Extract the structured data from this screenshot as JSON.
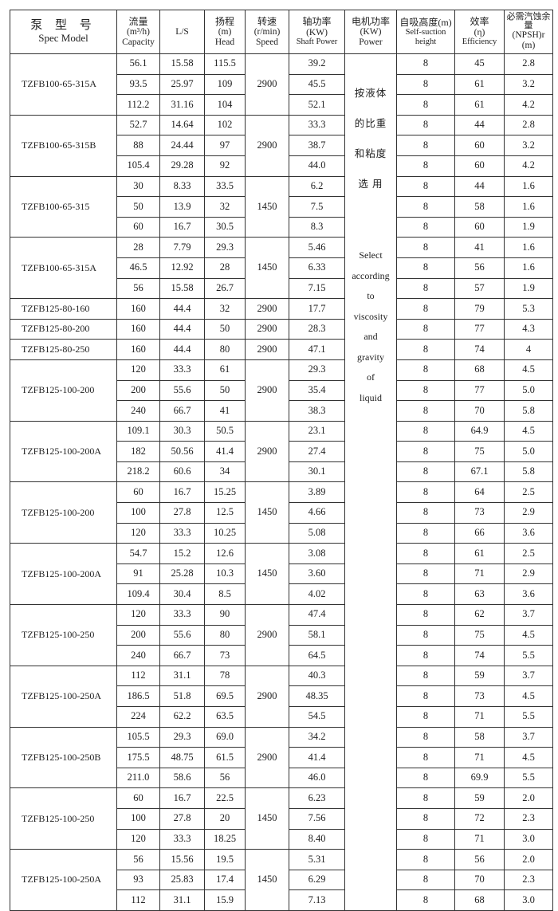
{
  "header": {
    "model": {
      "cn": "泵 型 号",
      "en": "Spec Model"
    },
    "capacity": {
      "cn": "流量",
      "unit": "(m³/h)",
      "en": "Capacity"
    },
    "ls": {
      "en": "L/S"
    },
    "head": {
      "cn": "扬程",
      "unit": "(m)",
      "en": "Head"
    },
    "speed": {
      "cn": "转速",
      "unit": "(r/min)",
      "en": "Speed"
    },
    "shaft": {
      "cn": "轴功率",
      "unit": "(KW)",
      "en": "Shaft Power"
    },
    "power": {
      "cn": "电机功率",
      "unit": "(KW)",
      "en": "Power"
    },
    "suction": {
      "cn": "自吸高度(m)",
      "en": "Self-suction height"
    },
    "efficiency": {
      "cn": "效率",
      "unit": "(η)",
      "en": "Efficiency"
    },
    "npsh": {
      "cn": "必需汽蚀余量",
      "unit": "(NPSH)r",
      "en": "(m)"
    }
  },
  "power_note": {
    "cn": [
      "按液体",
      "的比重",
      "和粘度",
      "选  用"
    ],
    "en": [
      "Select",
      "according",
      "to",
      "viscosity",
      "and",
      "gravity",
      "of",
      "liquid"
    ]
  },
  "groups": [
    {
      "model": "TZFB100-65-315A",
      "speed": "2900",
      "rows": [
        [
          "56.1",
          "15.58",
          "115.5",
          "39.2",
          "8",
          "45",
          "2.8"
        ],
        [
          "93.5",
          "25.97",
          "109",
          "45.5",
          "8",
          "61",
          "3.2"
        ],
        [
          "112.2",
          "31.16",
          "104",
          "52.1",
          "8",
          "61",
          "4.2"
        ]
      ]
    },
    {
      "model": "TZFB100-65-315B",
      "speed": "2900",
      "rows": [
        [
          "52.7",
          "14.64",
          "102",
          "33.3",
          "8",
          "44",
          "2.8"
        ],
        [
          "88",
          "24.44",
          "97",
          "38.7",
          "8",
          "60",
          "3.2"
        ],
        [
          "105.4",
          "29.28",
          "92",
          "44.0",
          "8",
          "60",
          "4.2"
        ]
      ]
    },
    {
      "model": "TZFB100-65-315",
      "speed": "1450",
      "rows": [
        [
          "30",
          "8.33",
          "33.5",
          "6.2",
          "8",
          "44",
          "1.6"
        ],
        [
          "50",
          "13.9",
          "32",
          "7.5",
          "8",
          "58",
          "1.6"
        ],
        [
          "60",
          "16.7",
          "30.5",
          "8.3",
          "8",
          "60",
          "1.9"
        ]
      ]
    },
    {
      "model": "TZFB100-65-315A",
      "speed": "1450",
      "rows": [
        [
          "28",
          "7.79",
          "29.3",
          "5.46",
          "8",
          "41",
          "1.6"
        ],
        [
          "46.5",
          "12.92",
          "28",
          "6.33",
          "8",
          "56",
          "1.6"
        ],
        [
          "56",
          "15.58",
          "26.7",
          "7.15",
          "8",
          "57",
          "1.9"
        ]
      ]
    },
    {
      "model": "TZFB125-80-160",
      "speed": "2900",
      "rows": [
        [
          "160",
          "44.4",
          "32",
          "17.7",
          "8",
          "79",
          "5.3"
        ]
      ]
    },
    {
      "model": "TZFB125-80-200",
      "speed": "2900",
      "rows": [
        [
          "160",
          "44.4",
          "50",
          "28.3",
          "8",
          "77",
          "4.3"
        ]
      ]
    },
    {
      "model": "TZFB125-80-250",
      "speed": "2900",
      "rows": [
        [
          "160",
          "44.4",
          "80",
          "47.1",
          "8",
          "74",
          "4"
        ]
      ]
    },
    {
      "model": "TZFB125-100-200",
      "speed": "2900",
      "rows": [
        [
          "120",
          "33.3",
          "61",
          "29.3",
          "8",
          "68",
          "4.5"
        ],
        [
          "200",
          "55.6",
          "50",
          "35.4",
          "8",
          "77",
          "5.0"
        ],
        [
          "240",
          "66.7",
          "41",
          "38.3",
          "8",
          "70",
          "5.8"
        ]
      ]
    },
    {
      "model": "TZFB125-100-200A",
      "speed": "2900",
      "rows": [
        [
          "109.1",
          "30.3",
          "50.5",
          "23.1",
          "8",
          "64.9",
          "4.5"
        ],
        [
          "182",
          "50.56",
          "41.4",
          "27.4",
          "8",
          "75",
          "5.0"
        ],
        [
          "218.2",
          "60.6",
          "34",
          "30.1",
          "8",
          "67.1",
          "5.8"
        ]
      ]
    },
    {
      "model": "TZFB125-100-200",
      "speed": "1450",
      "rows": [
        [
          "60",
          "16.7",
          "15.25",
          "3.89",
          "8",
          "64",
          "2.5"
        ],
        [
          "100",
          "27.8",
          "12.5",
          "4.66",
          "8",
          "73",
          "2.9"
        ],
        [
          "120",
          "33.3",
          "10.25",
          "5.08",
          "8",
          "66",
          "3.6"
        ]
      ]
    },
    {
      "model": "TZFB125-100-200A",
      "speed": "1450",
      "rows": [
        [
          "54.7",
          "15.2",
          "12.6",
          "3.08",
          "8",
          "61",
          "2.5"
        ],
        [
          "91",
          "25.28",
          "10.3",
          "3.60",
          "8",
          "71",
          "2.9"
        ],
        [
          "109.4",
          "30.4",
          "8.5",
          "4.02",
          "8",
          "63",
          "3.6"
        ]
      ]
    },
    {
      "model": "TZFB125-100-250",
      "speed": "2900",
      "rows": [
        [
          "120",
          "33.3",
          "90",
          "47.4",
          "8",
          "62",
          "3.7"
        ],
        [
          "200",
          "55.6",
          "80",
          "58.1",
          "8",
          "75",
          "4.5"
        ],
        [
          "240",
          "66.7",
          "73",
          "64.5",
          "8",
          "74",
          "5.5"
        ]
      ]
    },
    {
      "model": "TZFB125-100-250A",
      "speed": "2900",
      "rows": [
        [
          "112",
          "31.1",
          "78",
          "40.3",
          "8",
          "59",
          "3.7"
        ],
        [
          "186.5",
          "51.8",
          "69.5",
          "48.35",
          "8",
          "73",
          "4.5"
        ],
        [
          "224",
          "62.2",
          "63.5",
          "54.5",
          "8",
          "71",
          "5.5"
        ]
      ]
    },
    {
      "model": "TZFB125-100-250B",
      "speed": "2900",
      "rows": [
        [
          "105.5",
          "29.3",
          "69.0",
          "34.2",
          "8",
          "58",
          "3.7"
        ],
        [
          "175.5",
          "48.75",
          "61.5",
          "41.4",
          "8",
          "71",
          "4.5"
        ],
        [
          "211.0",
          "58.6",
          "56",
          "46.0",
          "8",
          "69.9",
          "5.5"
        ]
      ]
    },
    {
      "model": "TZFB125-100-250",
      "speed": "1450",
      "rows": [
        [
          "60",
          "16.7",
          "22.5",
          "6.23",
          "8",
          "59",
          "2.0"
        ],
        [
          "100",
          "27.8",
          "20",
          "7.56",
          "8",
          "72",
          "2.3"
        ],
        [
          "120",
          "33.3",
          "18.25",
          "8.40",
          "8",
          "71",
          "3.0"
        ]
      ]
    },
    {
      "model": "TZFB125-100-250A",
      "speed": "1450",
      "rows": [
        [
          "56",
          "15.56",
          "19.5",
          "5.31",
          "8",
          "56",
          "2.0"
        ],
        [
          "93",
          "25.83",
          "17.4",
          "6.29",
          "8",
          "70",
          "2.3"
        ],
        [
          "112",
          "31.1",
          "15.9",
          "7.13",
          "8",
          "68",
          "3.0"
        ]
      ]
    }
  ]
}
